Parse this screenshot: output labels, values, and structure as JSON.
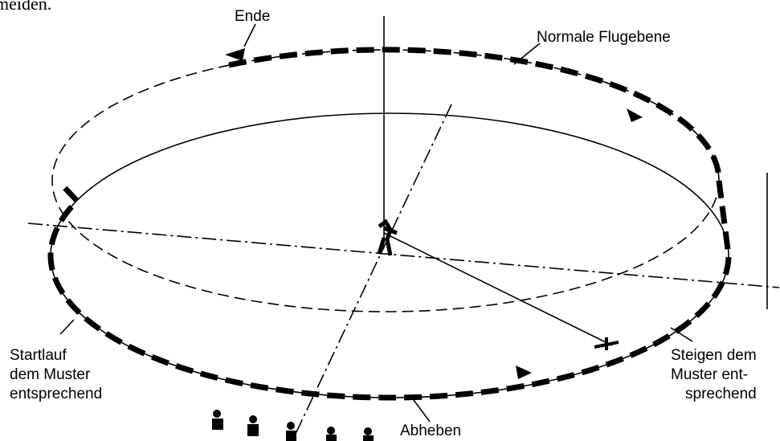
{
  "top_fragment": "meiden.",
  "labels": {
    "end": "Ende",
    "normal_plane": "Normale Flugebene",
    "takeoff_run": [
      "Startlauf",
      "dem Muster",
      "entsprechend"
    ],
    "climb": [
      "Steigen dem",
      "Muster ent-",
      "sprechend"
    ],
    "liftoff": "Abheben"
  }
}
